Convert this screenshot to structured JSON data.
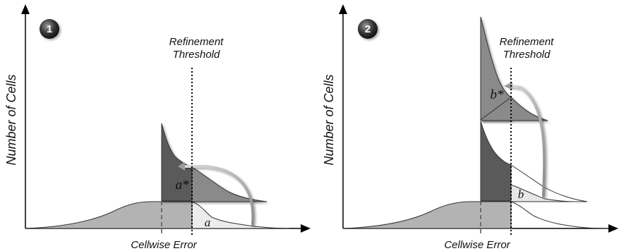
{
  "panels": [
    {
      "badge": "1",
      "y_axis_label": "Number of Cells",
      "x_axis_label": "Cellwise Error",
      "threshold_label_line1": "Refinement",
      "threshold_label_line2": "Threshold",
      "region_star_label": "a*",
      "region_label": "a"
    },
    {
      "badge": "2",
      "y_axis_label": "Number of Cells",
      "x_axis_label": "Cellwise Error",
      "threshold_label_line1": "Refinement",
      "threshold_label_line2": "Threshold",
      "region_star_label": "b*",
      "region_label": "b"
    }
  ],
  "colors": {
    "light_gray": "#b3b3b3",
    "mid_gray": "#8a8a8a",
    "dark_gray": "#5a5a5a",
    "pale_gray": "#e6e6e6",
    "axis": "#000000"
  }
}
